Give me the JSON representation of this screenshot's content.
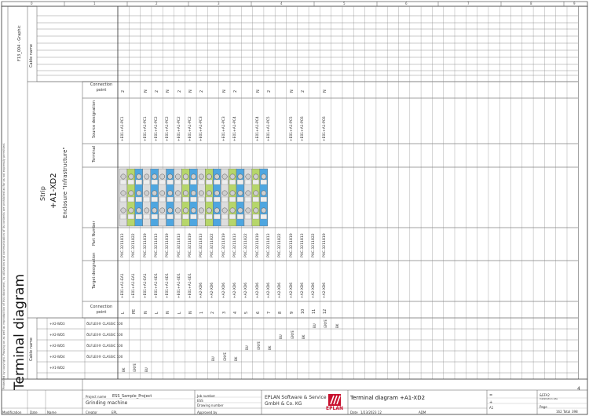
{
  "title": "Terminal diagram",
  "copyright_note": "Protected by copyright. Passing on as well as reproduction of this document, its utilization and communication of its contents are prohibited as far as not expressly permitted.",
  "top_ruler": [
    "0",
    "1",
    "2",
    "3",
    "4",
    "5",
    "6",
    "7",
    "8",
    "9"
  ],
  "page_marker": "4",
  "strip": {
    "label": "Strip",
    "name": "+A1-XD2",
    "enclosure": "Enclosure \"Infrastructure\""
  },
  "graphic_header": "F13_004 - Graphic",
  "row_labels": {
    "cable_name_top": "Cable name",
    "connection_point_top": "Connection point",
    "source_designation": "Source designation",
    "terminal": "Terminal",
    "part_number": "Part Number",
    "target_designation": "Target designation",
    "connection_point_bottom": "Connection point",
    "cable_name_bottom": "Cable name"
  },
  "terminals": [
    {
      "cp_top": "2",
      "source": "+E01+A1-PC1",
      "part": "PXC.3211813",
      "target": "+E01+A1-EA1",
      "cp_bottom": "L",
      "color": "#dddddd"
    },
    {
      "cp_top": "",
      "source": "",
      "part": "PXC.3211822",
      "target": "+E01+A1-EA1",
      "cp_bottom": "PE",
      "color": "#b6d66a"
    },
    {
      "cp_top": "N",
      "source": "+E01+A1-PC1",
      "part": "PXC.3211819",
      "target": "+E01+A1-EA1",
      "cp_bottom": "N",
      "color": "#4ea6e0"
    },
    {
      "cp_top": "2",
      "source": "+E01+A1-PC2",
      "part": "PXC.3211813",
      "target": "+E01+A1-XD1",
      "cp_bottom": "L",
      "color": "#dddddd"
    },
    {
      "cp_top": "N",
      "source": "+E01+A1-PC2",
      "part": "PXC.3211819",
      "target": "+E01+A1-XD1",
      "cp_bottom": "N",
      "color": "#4ea6e0"
    },
    {
      "cp_top": "2",
      "source": "+E01+A1-PC2",
      "part": "PXC.3211813",
      "target": "+E01+A1-XD1",
      "cp_bottom": "L",
      "color": "#dddddd"
    },
    {
      "cp_top": "N",
      "source": "+E01+A1-PC2",
      "part": "PXC.3211819",
      "target": "+E01+A1-XD1",
      "cp_bottom": "N",
      "color": "#4ea6e0"
    },
    {
      "cp_top": "2",
      "source": "+E01+A1-PC3",
      "part": "PXC.3211813",
      "target": "+A2-XD6",
      "cp_bottom": "1",
      "color": "#dddddd"
    },
    {
      "cp_top": "",
      "source": "",
      "part": "PXC.3211822",
      "target": "+A2-XD6",
      "cp_bottom": "2",
      "color": "#b6d66a"
    },
    {
      "cp_top": "N",
      "source": "+E01+A1-PC3",
      "part": "PXC.3211819",
      "target": "+A2-XD6",
      "cp_bottom": "3",
      "color": "#4ea6e0"
    },
    {
      "cp_top": "2",
      "source": "+E01+A1-PC4",
      "part": "PXC.3211813",
      "target": "+A2-XD6",
      "cp_bottom": "4",
      "color": "#dddddd"
    },
    {
      "cp_top": "",
      "source": "",
      "part": "PXC.3211822",
      "target": "+A2-XD6",
      "cp_bottom": "5",
      "color": "#b6d66a"
    },
    {
      "cp_top": "N",
      "source": "+E01+A1-PC4",
      "part": "PXC.3211819",
      "target": "+A2-XD6",
      "cp_bottom": "6",
      "color": "#4ea6e0"
    },
    {
      "cp_top": "2",
      "source": "+E01+A1-PC5",
      "part": "PXC.3211813",
      "target": "+A2-XD6",
      "cp_bottom": "7",
      "color": "#dddddd"
    },
    {
      "cp_top": "",
      "source": "",
      "part": "PXC.3211822",
      "target": "+A2-XD6",
      "cp_bottom": "8",
      "color": "#b6d66a"
    },
    {
      "cp_top": "N",
      "source": "+E01+A1-PC5",
      "part": "PXC.3211819",
      "target": "+A2-XD6",
      "cp_bottom": "9",
      "color": "#4ea6e0"
    },
    {
      "cp_top": "2",
      "source": "+E01+A1-PC6",
      "part": "PXC.3211813",
      "target": "+A2-XD6",
      "cp_bottom": "10",
      "color": "#dddddd"
    },
    {
      "cp_top": "",
      "source": "",
      "part": "PXC.3211822",
      "target": "+A2-XD6",
      "cp_bottom": "11",
      "color": "#b6d66a"
    },
    {
      "cp_top": "N",
      "source": "+E01+A1-PC6",
      "part": "PXC.3211819",
      "target": "+A2-XD6",
      "cp_bottom": "12",
      "color": "#4ea6e0"
    }
  ],
  "cables": [
    {
      "name": "+A2-WD3",
      "type": "ÖLFLEX® CLASSIC 100",
      "marks": [
        {
          "col": 17,
          "text": "BU"
        },
        {
          "col": 18,
          "text": "GNYE"
        },
        {
          "col": 19,
          "text": "BK"
        }
      ]
    },
    {
      "name": "+A2-WD5",
      "type": "ÖLFLEX® CLASSIC 100",
      "marks": [
        {
          "col": 14,
          "text": "BU"
        },
        {
          "col": 15,
          "text": "GNYE"
        },
        {
          "col": 16,
          "text": "BK"
        }
      ]
    },
    {
      "name": "+A2-WD5",
      "type": "ÖLFLEX® CLASSIC 100",
      "marks": [
        {
          "col": 11,
          "text": "BU"
        },
        {
          "col": 12,
          "text": "GNYE"
        },
        {
          "col": 13,
          "text": "BK"
        }
      ]
    },
    {
      "name": "+A2-WD4",
      "type": "ÖLFLEX® CLASSIC 100",
      "marks": [
        {
          "col": 8,
          "text": "BU"
        },
        {
          "col": 9,
          "text": "GNYE"
        },
        {
          "col": 10,
          "text": "BK"
        }
      ]
    },
    {
      "name": "+A1-WD2",
      "type": "",
      "marks": [
        {
          "col": 0,
          "text": "BK"
        },
        {
          "col": 1,
          "text": "GNYE"
        },
        {
          "col": 2,
          "text": "BU"
        }
      ]
    }
  ],
  "title_block": {
    "project_name_label": "Project name",
    "project_name": "ESS_Sample_Project",
    "description": "Grinding machine",
    "job_number_label": "Job number",
    "job_number": "ESS",
    "drawing_number_label": "Drawing number",
    "company_line1": "EPLAN Software & Service",
    "company_line2": "GmbH & Co. KG",
    "logo_text": "EPLAN",
    "sheet_title": "Terminal diagram +A1-XD2",
    "ref_top": "=",
    "ref_plus": "+",
    "ref_code": "A1",
    "doc_type": "&EFA2",
    "installation_label": "Installation site",
    "page_label": "Page",
    "page_value": "162",
    "total_label": "Total",
    "total_value": "398",
    "modification_label": "Modification",
    "date_label": "Date",
    "name_label": "Name",
    "creator_label": "Creator",
    "creator_value": "EPL",
    "approved_label": "Approved by",
    "date2_label": "Date",
    "date2_value": "1/23/2023 12",
    "user_value": "ADM"
  }
}
